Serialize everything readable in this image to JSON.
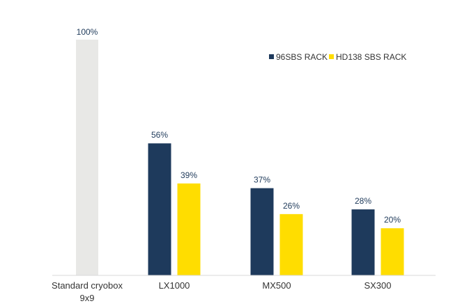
{
  "chart_data": {
    "type": "bar",
    "categories": [
      "Standard cryobox 9x9",
      "LX1000",
      "MX500",
      "SX300"
    ],
    "category_lines": [
      [
        "Standard cryobox",
        "9x9"
      ],
      [
        "LX1000"
      ],
      [
        "MX500"
      ],
      [
        "SX300"
      ]
    ],
    "reference": {
      "category": "Standard cryobox 9x9",
      "value": 100,
      "label": "100%",
      "color": "#e8e8e6"
    },
    "series": [
      {
        "name": "96SBS RACK",
        "color": "#1e3a5c",
        "values": [
          null,
          56,
          37,
          28
        ],
        "labels": [
          null,
          "56%",
          "37%",
          "28%"
        ]
      },
      {
        "name": "HD138 SBS RACK",
        "color": "#ffdd00",
        "values": [
          null,
          39,
          26,
          20
        ],
        "labels": [
          null,
          "39%",
          "26%",
          "20%"
        ]
      }
    ],
    "unit": "%",
    "ylim": [
      0,
      100
    ],
    "grid": false,
    "legend_position": "top-right",
    "axis_color": "#d9d9d9"
  }
}
